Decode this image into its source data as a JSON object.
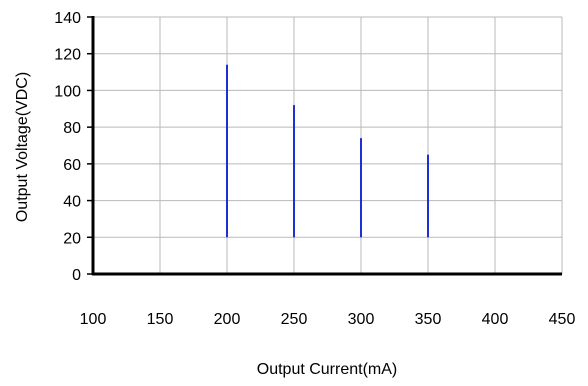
{
  "chart_data": {
    "type": "bar",
    "xlabel": "Output Current(mA)",
    "ylabel": "Output Voltage(VDC)",
    "xlim": [
      100,
      450
    ],
    "ylim": [
      0,
      140
    ],
    "x_ticks": [
      100,
      150,
      200,
      250,
      300,
      350,
      400,
      450
    ],
    "y_ticks": [
      0,
      20,
      40,
      60,
      80,
      100,
      120,
      140
    ],
    "grid": true,
    "series": [
      {
        "color": "#1f2fd6",
        "points": [
          {
            "x": 200,
            "y_min": 20,
            "y_max": 114
          },
          {
            "x": 250,
            "y_min": 20,
            "y_max": 92
          },
          {
            "x": 300,
            "y_min": 20,
            "y_max": 74
          },
          {
            "x": 350,
            "y_min": 20,
            "y_max": 65
          }
        ]
      }
    ]
  }
}
